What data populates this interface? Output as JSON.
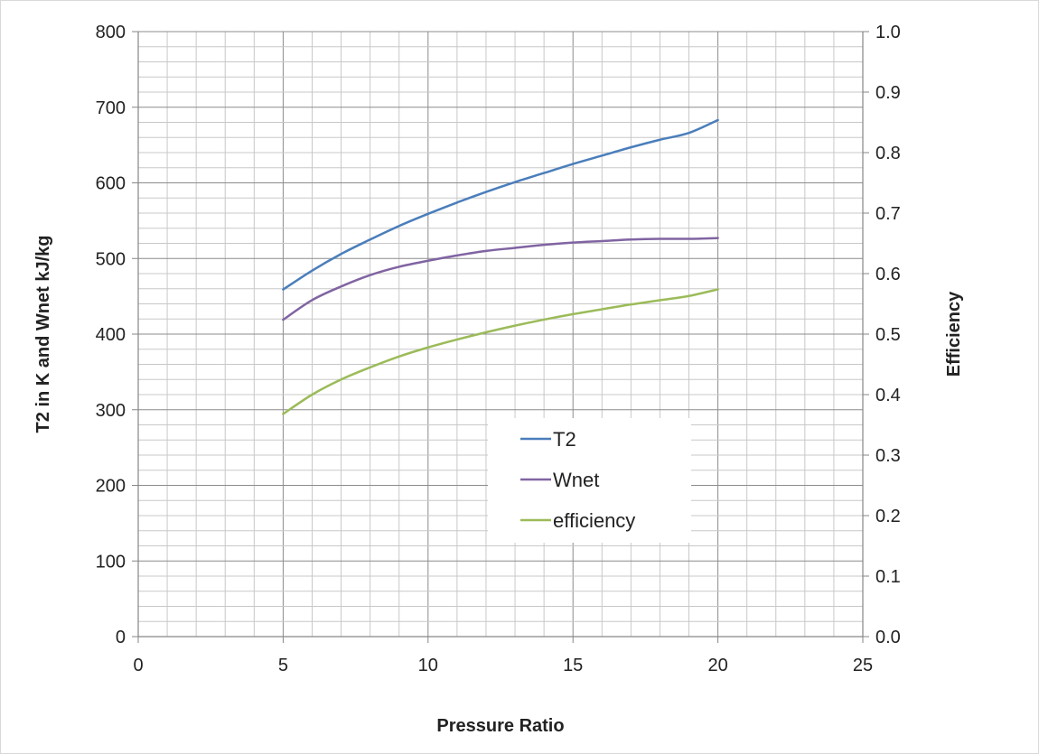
{
  "chart_data": {
    "type": "line",
    "title": "",
    "xlabel": "Pressure Ratio",
    "ylabel": "T2 in K and Wnet kJ/kg",
    "y2label": "Efficiency",
    "xlim": [
      0,
      25
    ],
    "ylim": [
      0,
      800
    ],
    "y2lim": [
      0.0,
      1.0
    ],
    "x_ticks": [
      "0",
      "5",
      "10",
      "15",
      "20",
      "25"
    ],
    "y_ticks": [
      "0",
      "100",
      "200",
      "300",
      "400",
      "500",
      "600",
      "700",
      "800"
    ],
    "y2_ticks": [
      "0.0",
      "0.1",
      "0.2",
      "0.3",
      "0.4",
      "0.5",
      "0.6",
      "0.7",
      "0.8",
      "0.9",
      "1.0"
    ],
    "grid": true,
    "legend_position": "center-right",
    "series": [
      {
        "name": "T2",
        "axis": "left",
        "color": "#4a7ebb",
        "x": [
          5,
          6,
          7,
          8,
          9,
          10,
          11,
          12,
          13,
          14,
          15,
          16,
          17,
          18,
          19,
          20
        ],
        "values": [
          459,
          484,
          506,
          525,
          543,
          559,
          574,
          588,
          601,
          613,
          625,
          636,
          647,
          657,
          666,
          683
        ]
      },
      {
        "name": "Wnet",
        "axis": "left",
        "color": "#8064a2",
        "x": [
          5,
          6,
          7,
          8,
          9,
          10,
          11,
          12,
          13,
          14,
          15,
          16,
          17,
          18,
          19,
          20
        ],
        "values": [
          419,
          445,
          463,
          478,
          489,
          497,
          504,
          510,
          514,
          518,
          521,
          523,
          525,
          526,
          526,
          527
        ]
      },
      {
        "name": "efficiency",
        "axis": "right",
        "color": "#9bbb59",
        "x": [
          5,
          6,
          7,
          8,
          9,
          10,
          11,
          12,
          13,
          14,
          15,
          16,
          17,
          18,
          19,
          20
        ],
        "values": [
          0.368,
          0.4,
          0.425,
          0.445,
          0.463,
          0.478,
          0.491,
          0.503,
          0.514,
          0.524,
          0.533,
          0.541,
          0.549,
          0.556,
          0.563,
          0.574
        ]
      }
    ]
  }
}
